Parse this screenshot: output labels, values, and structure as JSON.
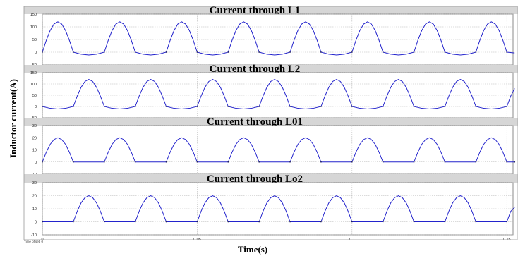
{
  "figure": {
    "ylabel": "Inductor current(A)",
    "xlabel": "Time(s)",
    "footer": "Time offset: 0"
  },
  "colors": {
    "background": "#ffffff",
    "title_band": "#d6d6d6",
    "plot_bg": "#ffffff",
    "grid": "#b8b8b8",
    "trace": "#2323cc",
    "frame": "#6e6e6e"
  },
  "chart_data": [
    {
      "type": "line",
      "title": "Current through L1",
      "xlim": [
        0,
        0.152
      ],
      "ylim": [
        -50,
        150
      ],
      "yticks": [
        "-50",
        "0",
        "50",
        "100",
        "150"
      ],
      "ytick_values": [
        -50,
        0,
        50,
        100,
        150
      ],
      "grid": true,
      "series": [
        {
          "x": [
            0,
            0.00125,
            0.0025,
            0.00375,
            0.005,
            0.00625,
            0.0075,
            0.00875,
            0.01,
            0.0125,
            0.015,
            0.0175,
            0.02,
            0.02125,
            0.0225,
            0.02375,
            0.025,
            0.02625,
            0.0275,
            0.02875,
            0.03,
            0.0325,
            0.035,
            0.0375,
            0.04,
            0.04125,
            0.0425,
            0.04375,
            0.045,
            0.04625,
            0.0475,
            0.04875,
            0.05,
            0.0525,
            0.055,
            0.0575,
            0.06,
            0.06125,
            0.0625,
            0.06375,
            0.065,
            0.06625,
            0.0675,
            0.06875,
            0.07,
            0.0725,
            0.075,
            0.0775,
            0.08,
            0.08125,
            0.0825,
            0.08375,
            0.085,
            0.08625,
            0.0875,
            0.08875,
            0.09,
            0.0925,
            0.095,
            0.0975,
            0.1,
            0.10125,
            0.1025,
            0.10375,
            0.105,
            0.10625,
            0.1075,
            0.10875,
            0.11,
            0.1125,
            0.115,
            0.1175,
            0.12,
            0.12125,
            0.1225,
            0.12375,
            0.125,
            0.12625,
            0.1275,
            0.12875,
            0.13,
            0.1325,
            0.135,
            0.1375,
            0.14,
            0.14125,
            0.1425,
            0.14375,
            0.145,
            0.14625,
            0.1475,
            0.14875,
            0.15,
            0.1525
          ],
          "y": [
            0,
            46,
            85,
            111,
            120,
            111,
            85,
            46,
            0,
            -8,
            -11,
            -8,
            0,
            46,
            85,
            111,
            120,
            111,
            85,
            46,
            0,
            -8,
            -11,
            -8,
            0,
            46,
            85,
            111,
            120,
            111,
            85,
            46,
            0,
            -8,
            -11,
            -8,
            0,
            46,
            85,
            111,
            120,
            111,
            85,
            46,
            0,
            -8,
            -11,
            -8,
            0,
            46,
            85,
            111,
            120,
            111,
            85,
            46,
            0,
            -8,
            -11,
            -8,
            0,
            46,
            85,
            111,
            120,
            111,
            85,
            46,
            0,
            -8,
            -11,
            -8,
            0,
            46,
            85,
            111,
            120,
            111,
            85,
            46,
            0,
            -8,
            -11,
            -8,
            0,
            46,
            85,
            111,
            120,
            111,
            85,
            46,
            0,
            -3
          ]
        }
      ]
    },
    {
      "type": "line",
      "title": "Current through L2",
      "xlim": [
        0,
        0.152
      ],
      "ylim": [
        -50,
        150
      ],
      "yticks": [
        "-50",
        "0",
        "50",
        "100",
        "150"
      ],
      "ytick_values": [
        -50,
        0,
        50,
        100,
        150
      ],
      "grid": true,
      "series": [
        {
          "x": [
            0,
            0.0025,
            0.005,
            0.0075,
            0.01,
            0.01125,
            0.0125,
            0.01375,
            0.015,
            0.01625,
            0.0175,
            0.01875,
            0.02,
            0.0225,
            0.025,
            0.0275,
            0.03,
            0.03125,
            0.0325,
            0.03375,
            0.035,
            0.03625,
            0.0375,
            0.03875,
            0.04,
            0.0425,
            0.045,
            0.0475,
            0.05,
            0.05125,
            0.0525,
            0.05375,
            0.055,
            0.05625,
            0.0575,
            0.05875,
            0.06,
            0.0625,
            0.065,
            0.0675,
            0.07,
            0.07125,
            0.0725,
            0.07375,
            0.075,
            0.07625,
            0.0775,
            0.07875,
            0.08,
            0.0825,
            0.085,
            0.0875,
            0.09,
            0.09125,
            0.0925,
            0.09375,
            0.095,
            0.09625,
            0.0975,
            0.09875,
            0.1,
            0.1025,
            0.105,
            0.1075,
            0.11,
            0.11125,
            0.1125,
            0.11375,
            0.115,
            0.11625,
            0.1175,
            0.11875,
            0.12,
            0.1225,
            0.125,
            0.1275,
            0.13,
            0.13125,
            0.1325,
            0.13375,
            0.135,
            0.13625,
            0.1375,
            0.13875,
            0.14,
            0.1425,
            0.145,
            0.1475,
            0.15,
            0.15125,
            0.1525
          ],
          "y": [
            0,
            -8,
            -11,
            -8,
            0,
            46,
            85,
            111,
            120,
            111,
            85,
            46,
            0,
            -8,
            -11,
            -8,
            0,
            46,
            85,
            111,
            120,
            111,
            85,
            46,
            0,
            -8,
            -11,
            -8,
            0,
            46,
            85,
            111,
            120,
            111,
            85,
            46,
            0,
            -8,
            -11,
            -8,
            0,
            46,
            85,
            111,
            120,
            111,
            85,
            46,
            0,
            -8,
            -11,
            -8,
            0,
            46,
            85,
            111,
            120,
            111,
            85,
            46,
            0,
            -8,
            -11,
            -8,
            0,
            46,
            85,
            111,
            120,
            111,
            85,
            46,
            0,
            -8,
            -11,
            -8,
            0,
            46,
            85,
            111,
            120,
            111,
            85,
            46,
            0,
            -8,
            -11,
            -8,
            0,
            46,
            80
          ]
        }
      ]
    },
    {
      "type": "line",
      "title": "Current through L01",
      "xlim": [
        0,
        0.152
      ],
      "ylim": [
        -10,
        30
      ],
      "yticks": [
        "-10",
        "0",
        "10",
        "20",
        "30"
      ],
      "ytick_values": [
        -10,
        0,
        10,
        20,
        30
      ],
      "grid": true,
      "series": [
        {
          "x": [
            0,
            0.00125,
            0.0025,
            0.00375,
            0.005,
            0.00625,
            0.0075,
            0.00875,
            0.01,
            0.02,
            0.02125,
            0.0225,
            0.02375,
            0.025,
            0.02625,
            0.0275,
            0.02875,
            0.03,
            0.04,
            0.04125,
            0.0425,
            0.04375,
            0.045,
            0.04625,
            0.0475,
            0.04875,
            0.05,
            0.06,
            0.06125,
            0.0625,
            0.06375,
            0.065,
            0.06625,
            0.0675,
            0.06875,
            0.07,
            0.08,
            0.08125,
            0.0825,
            0.08375,
            0.085,
            0.08625,
            0.0875,
            0.08875,
            0.09,
            0.1,
            0.10125,
            0.1025,
            0.10375,
            0.105,
            0.10625,
            0.1075,
            0.10875,
            0.11,
            0.12,
            0.12125,
            0.1225,
            0.12375,
            0.125,
            0.12625,
            0.1275,
            0.12875,
            0.13,
            0.14,
            0.14125,
            0.1425,
            0.14375,
            0.145,
            0.14625,
            0.1475,
            0.14875,
            0.15,
            0.1525
          ],
          "y": [
            0,
            8,
            14.5,
            18.5,
            20,
            18.5,
            14.5,
            8,
            0,
            0,
            8,
            14.5,
            18.5,
            20,
            18.5,
            14.5,
            8,
            0,
            0,
            8,
            14.5,
            18.5,
            20,
            18.5,
            14.5,
            8,
            0,
            0,
            8,
            14.5,
            18.5,
            20,
            18.5,
            14.5,
            8,
            0,
            0,
            8,
            14.5,
            18.5,
            20,
            18.5,
            14.5,
            8,
            0,
            0,
            8,
            14.5,
            18.5,
            20,
            18.5,
            14.5,
            8,
            0,
            0,
            8,
            14.5,
            18.5,
            20,
            18.5,
            14.5,
            8,
            0,
            0,
            8,
            14.5,
            18.5,
            20,
            18.5,
            14.5,
            8,
            0,
            0
          ]
        }
      ]
    },
    {
      "type": "line",
      "title": "Current through Lo2",
      "xlim": [
        0,
        0.152
      ],
      "ylim": [
        -10,
        30
      ],
      "yticks": [
        "-10",
        "0",
        "10",
        "20",
        "30"
      ],
      "ytick_values": [
        -10,
        0,
        10,
        20,
        30
      ],
      "grid": true,
      "series": [
        {
          "x": [
            0,
            0.01,
            0.01125,
            0.0125,
            0.01375,
            0.015,
            0.01625,
            0.0175,
            0.01875,
            0.02,
            0.03,
            0.03125,
            0.0325,
            0.03375,
            0.035,
            0.03625,
            0.0375,
            0.03875,
            0.04,
            0.05,
            0.05125,
            0.0525,
            0.05375,
            0.055,
            0.05625,
            0.0575,
            0.05875,
            0.06,
            0.07,
            0.07125,
            0.0725,
            0.07375,
            0.075,
            0.07625,
            0.0775,
            0.07875,
            0.08,
            0.09,
            0.09125,
            0.0925,
            0.09375,
            0.095,
            0.09625,
            0.0975,
            0.09875,
            0.1,
            0.11,
            0.11125,
            0.1125,
            0.11375,
            0.115,
            0.11625,
            0.1175,
            0.11875,
            0.12,
            0.13,
            0.13125,
            0.1325,
            0.13375,
            0.135,
            0.13625,
            0.1375,
            0.13875,
            0.14,
            0.15,
            0.15125,
            0.1525
          ],
          "y": [
            0,
            0,
            8,
            14.5,
            18.5,
            20,
            18.5,
            14.5,
            8,
            0,
            0,
            8,
            14.5,
            18.5,
            20,
            18.5,
            14.5,
            8,
            0,
            0,
            8,
            14.5,
            18.5,
            20,
            18.5,
            14.5,
            8,
            0,
            0,
            8,
            14.5,
            18.5,
            20,
            18.5,
            14.5,
            8,
            0,
            0,
            8,
            14.5,
            18.5,
            20,
            18.5,
            14.5,
            8,
            0,
            0,
            8,
            14.5,
            18.5,
            20,
            18.5,
            14.5,
            8,
            0,
            0,
            8,
            14.5,
            18.5,
            20,
            18.5,
            14.5,
            8,
            0,
            0,
            8,
            11
          ]
        }
      ]
    }
  ],
  "xaxis": {
    "ticks": [
      "0",
      "0.05",
      "0.1",
      "0.15"
    ],
    "tick_values": [
      0,
      0.05,
      0.1,
      0.15
    ]
  }
}
